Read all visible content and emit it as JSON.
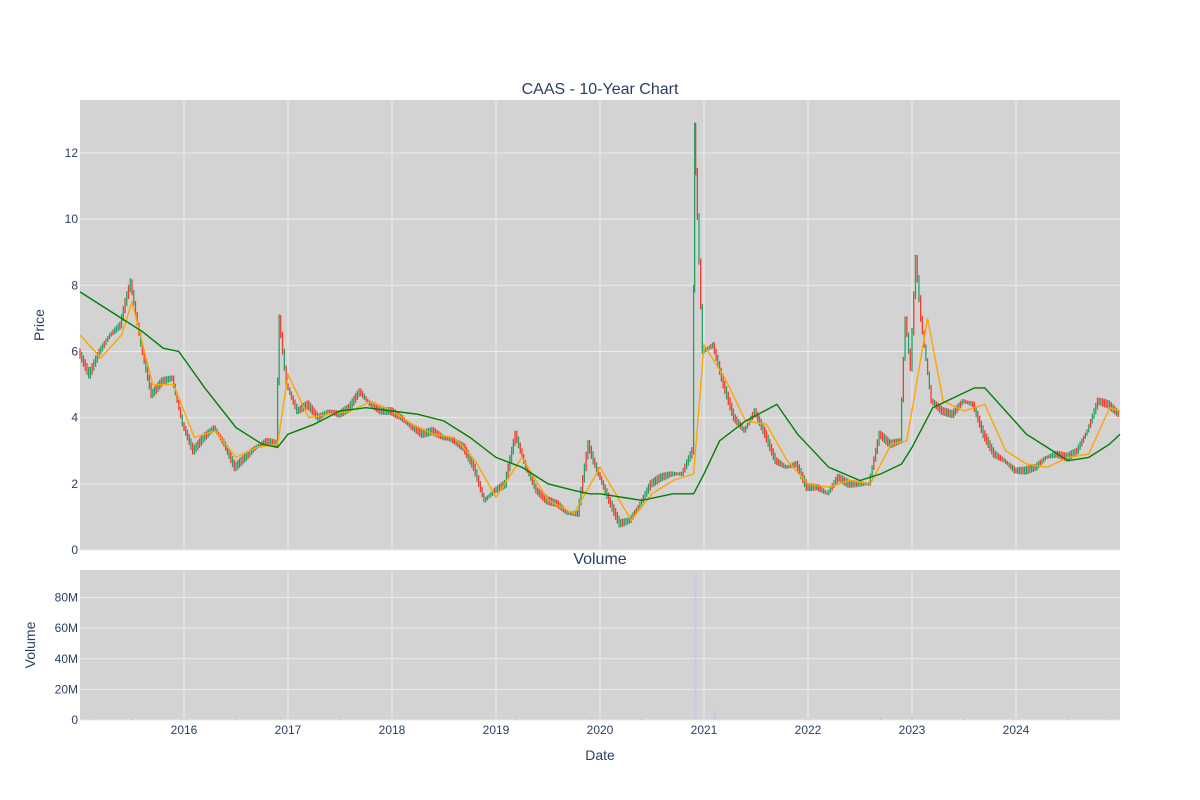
{
  "chart_data": [
    {
      "type": "line",
      "title": "CAAS - 10-Year Chart",
      "ylabel": "Price",
      "ylim": [
        0,
        13.6
      ],
      "yticks": [
        "0",
        "2",
        "4",
        "6",
        "8",
        "10",
        "12"
      ],
      "xlim": [
        2015.0,
        2025.0
      ],
      "grid": true,
      "series": [
        {
          "kind": "candlestick",
          "color_up": "#26a269",
          "color_down": "#f23c2e",
          "x": [
            2015.0,
            2015.1,
            2015.2,
            2015.3,
            2015.4,
            2015.45,
            2015.5,
            2015.6,
            2015.7,
            2015.8,
            2015.9,
            2016.0,
            2016.1,
            2016.2,
            2016.3,
            2016.4,
            2016.5,
            2016.6,
            2016.7,
            2016.8,
            2016.9,
            2016.93,
            2017.0,
            2017.1,
            2017.2,
            2017.3,
            2017.4,
            2017.5,
            2017.6,
            2017.7,
            2017.8,
            2017.9,
            2018.0,
            2018.1,
            2018.2,
            2018.3,
            2018.4,
            2018.5,
            2018.6,
            2018.7,
            2018.8,
            2018.9,
            2019.0,
            2019.1,
            2019.2,
            2019.3,
            2019.4,
            2019.5,
            2019.6,
            2019.7,
            2019.8,
            2019.9,
            2019.95,
            2020.0,
            2020.1,
            2020.2,
            2020.3,
            2020.4,
            2020.5,
            2020.6,
            2020.7,
            2020.8,
            2020.9,
            2020.92,
            2021.0,
            2021.1,
            2021.2,
            2021.3,
            2021.4,
            2021.5,
            2021.6,
            2021.7,
            2021.8,
            2021.9,
            2022.0,
            2022.1,
            2022.2,
            2022.3,
            2022.4,
            2022.5,
            2022.6,
            2022.7,
            2022.8,
            2022.9,
            2022.95,
            2023.0,
            2023.05,
            2023.1,
            2023.2,
            2023.3,
            2023.4,
            2023.5,
            2023.6,
            2023.7,
            2023.8,
            2023.9,
            2024.0,
            2024.1,
            2024.2,
            2024.3,
            2024.4,
            2024.5,
            2024.6,
            2024.7,
            2024.8,
            2024.9,
            2025.0
          ],
          "values": [
            6.0,
            5.3,
            6.0,
            6.5,
            6.8,
            7.5,
            8.1,
            6.2,
            4.7,
            5.1,
            5.2,
            3.8,
            3.0,
            3.4,
            3.7,
            3.2,
            2.5,
            2.8,
            3.1,
            3.3,
            3.2,
            7.0,
            5.0,
            4.2,
            4.4,
            4.0,
            4.2,
            4.1,
            4.3,
            4.8,
            4.4,
            4.2,
            4.2,
            4.0,
            3.7,
            3.5,
            3.6,
            3.4,
            3.3,
            3.1,
            2.5,
            1.5,
            1.8,
            2.0,
            3.5,
            2.5,
            1.8,
            1.5,
            1.4,
            1.1,
            1.1,
            3.2,
            2.7,
            2.3,
            1.5,
            0.8,
            0.9,
            1.4,
            2.0,
            2.2,
            2.3,
            2.3,
            3.0,
            12.8,
            6.0,
            6.2,
            5.0,
            4.0,
            3.6,
            4.2,
            3.5,
            2.7,
            2.5,
            2.6,
            1.9,
            1.9,
            1.7,
            2.2,
            2.0,
            2.0,
            2.0,
            3.5,
            3.2,
            3.3,
            7.0,
            5.5,
            8.8,
            7.0,
            4.5,
            4.2,
            4.1,
            4.5,
            4.4,
            3.5,
            2.9,
            2.7,
            2.4,
            2.4,
            2.5,
            2.8,
            2.9,
            2.8,
            3.0,
            3.6,
            4.5,
            4.4,
            4.1
          ]
        },
        {
          "kind": "moving-average-short",
          "color": "#ffa500",
          "x": [
            2015.0,
            2015.2,
            2015.4,
            2015.5,
            2015.7,
            2015.9,
            2016.1,
            2016.3,
            2016.5,
            2016.7,
            2016.9,
            2017.0,
            2017.2,
            2017.4,
            2017.6,
            2017.8,
            2018.0,
            2018.2,
            2018.4,
            2018.6,
            2018.8,
            2019.0,
            2019.25,
            2019.5,
            2019.75,
            2020.0,
            2020.3,
            2020.5,
            2020.7,
            2020.9,
            2021.0,
            2021.2,
            2021.4,
            2021.6,
            2021.8,
            2022.0,
            2022.2,
            2022.4,
            2022.6,
            2022.8,
            2022.95,
            2023.15,
            2023.3,
            2023.5,
            2023.7,
            2023.9,
            2024.1,
            2024.3,
            2024.5,
            2024.7,
            2024.9,
            2025.0
          ],
          "values": [
            6.5,
            5.8,
            6.5,
            7.5,
            5.0,
            5.0,
            3.4,
            3.6,
            2.8,
            3.1,
            3.2,
            5.3,
            4.0,
            4.1,
            4.2,
            4.5,
            4.2,
            3.8,
            3.5,
            3.4,
            2.7,
            1.6,
            2.8,
            1.5,
            1.1,
            2.5,
            0.9,
            1.7,
            2.1,
            2.3,
            6.2,
            5.2,
            3.9,
            3.8,
            2.7,
            2.0,
            1.9,
            2.1,
            2.0,
            3.2,
            3.3,
            7.0,
            4.5,
            4.2,
            4.4,
            3.0,
            2.6,
            2.5,
            2.8,
            2.9,
            4.3,
            4.2
          ]
        },
        {
          "kind": "moving-average-long",
          "color": "#008000",
          "x": [
            2015.0,
            2015.2,
            2015.4,
            2015.6,
            2015.8,
            2015.95,
            2016.2,
            2016.5,
            2016.75,
            2016.9,
            2017.0,
            2017.25,
            2017.5,
            2017.75,
            2018.0,
            2018.25,
            2018.5,
            2018.75,
            2019.0,
            2019.25,
            2019.5,
            2019.75,
            2019.9,
            2020.0,
            2020.4,
            2020.7,
            2020.9,
            2021.0,
            2021.15,
            2021.4,
            2021.7,
            2021.9,
            2022.2,
            2022.5,
            2022.7,
            2022.9,
            2023.0,
            2023.2,
            2023.4,
            2023.6,
            2023.7,
            2023.9,
            2024.1,
            2024.3,
            2024.5,
            2024.7,
            2024.9,
            2025.0
          ],
          "values": [
            7.8,
            7.4,
            7.0,
            6.6,
            6.1,
            6.0,
            4.9,
            3.7,
            3.2,
            3.1,
            3.5,
            3.8,
            4.2,
            4.3,
            4.2,
            4.1,
            3.9,
            3.4,
            2.8,
            2.5,
            2.0,
            1.8,
            1.7,
            1.7,
            1.5,
            1.7,
            1.7,
            2.3,
            3.3,
            3.9,
            4.4,
            3.5,
            2.5,
            2.1,
            2.3,
            2.6,
            3.1,
            4.3,
            4.6,
            4.9,
            4.9,
            4.2,
            3.5,
            3.1,
            2.7,
            2.8,
            3.2,
            3.5
          ]
        }
      ]
    },
    {
      "type": "bar",
      "title": "Volume",
      "ylabel": "Volume",
      "xlabel": "Date",
      "ylim": [
        0,
        98000000
      ],
      "yticks": [
        "0",
        "20M",
        "40M",
        "60M",
        "80M"
      ],
      "xticks": [
        "2016",
        "2017",
        "2018",
        "2019",
        "2020",
        "2021",
        "2022",
        "2023",
        "2024"
      ],
      "xlim": [
        2015.0,
        2025.0
      ],
      "grid": true,
      "series": [
        {
          "name": "Volume",
          "color": "#c8c8f0",
          "x": [
            2015.1,
            2015.5,
            2016.0,
            2016.5,
            2016.93,
            2017.5,
            2018.0,
            2019.2,
            2019.9,
            2020.4,
            2020.92,
            2021.1,
            2022.0,
            2022.7,
            2023.0,
            2023.5,
            2024.0,
            2024.5,
            2024.9
          ],
          "values": [
            500000,
            900000,
            600000,
            400000,
            2000000,
            500000,
            400000,
            1200000,
            1500000,
            800000,
            95000000,
            6000000,
            700000,
            1500000,
            3000000,
            1000000,
            600000,
            500000,
            900000
          ]
        }
      ]
    }
  ]
}
